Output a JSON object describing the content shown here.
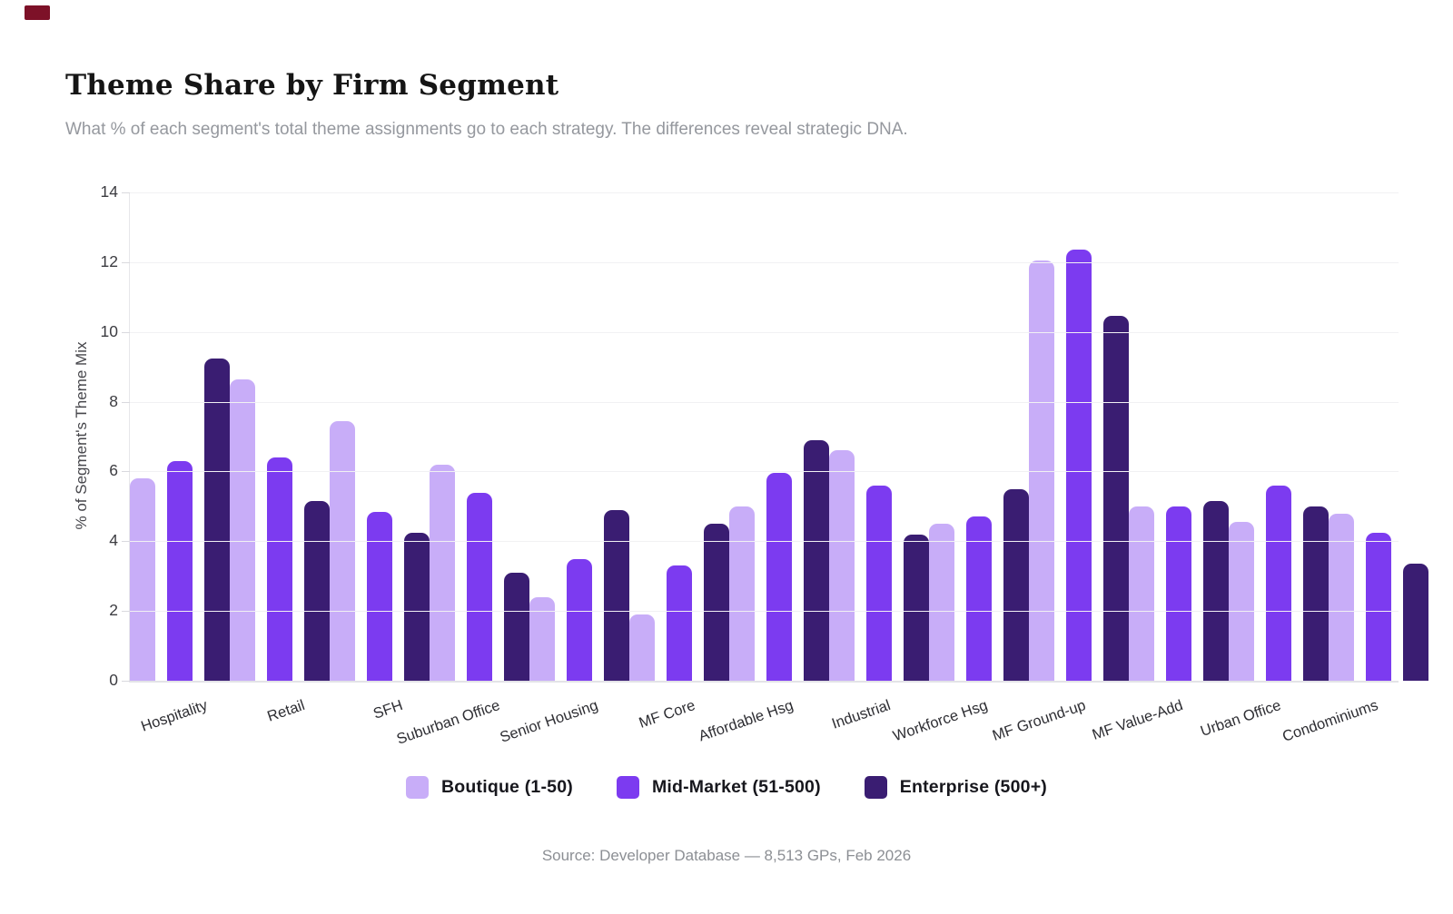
{
  "decorations": {
    "corner_mark_color": "#7d1128"
  },
  "header": {
    "title": "Theme Share by Firm Segment",
    "subtitle": "What % of each segment's total theme assignments go to each strategy. The differences reveal strategic DNA."
  },
  "chart_data": {
    "type": "bar",
    "title": "Theme Share by Firm Segment",
    "xlabel": "",
    "ylabel": "% of Segment's Theme Mix",
    "ylim": [
      0,
      14
    ],
    "yticks": [
      0,
      2,
      4,
      6,
      8,
      10,
      12,
      14
    ],
    "grid": true,
    "legend_position": "bottom",
    "categories": [
      "Hospitality",
      "Retail",
      "SFH",
      "Suburban Office",
      "Senior Housing",
      "MF Core",
      "Affordable Hsg",
      "Industrial",
      "Workforce Hsg",
      "MF Ground-up",
      "MF Value-Add",
      "Urban Office",
      "Condominiums"
    ],
    "series": [
      {
        "name": "Boutique (1-50)",
        "color": "#c8adf8",
        "values": [
          5.8,
          8.65,
          7.45,
          6.2,
          2.4,
          1.9,
          5.0,
          6.6,
          4.5,
          12.05,
          5.0,
          4.55,
          4.8
        ]
      },
      {
        "name": "Mid-Market (51-500)",
        "color": "#7c3bf0",
        "values": [
          6.3,
          6.4,
          4.85,
          5.4,
          3.5,
          3.3,
          5.95,
          5.6,
          4.7,
          12.35,
          5.0,
          5.6,
          4.25
        ]
      },
      {
        "name": "Enterprise (500+)",
        "color": "#3a1d72",
        "values": [
          9.25,
          5.15,
          4.25,
          3.1,
          4.9,
          4.5,
          6.9,
          4.2,
          5.5,
          10.45,
          5.15,
          5.0,
          3.35
        ]
      }
    ]
  },
  "footer": {
    "source": "Source: Developer Database — 8,513 GPs, Feb 2026"
  }
}
